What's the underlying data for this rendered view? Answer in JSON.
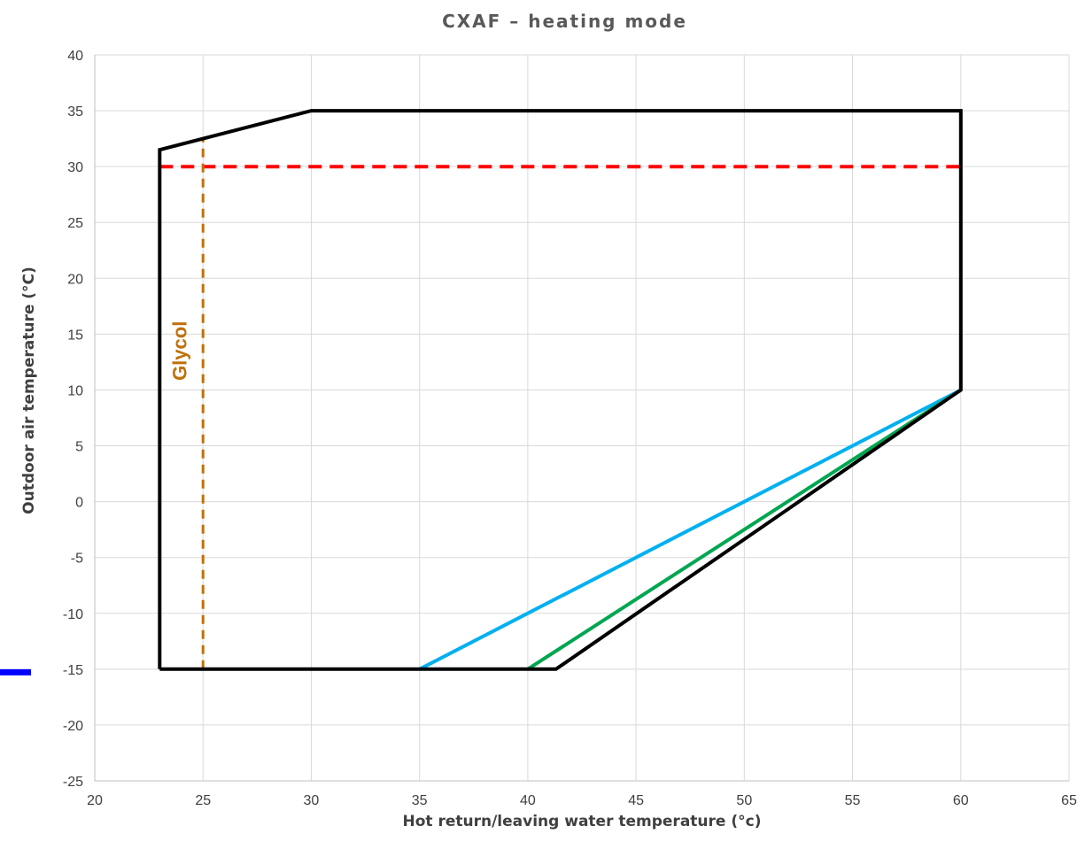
{
  "chart_data": {
    "type": "line",
    "title": "CXAF – heating mode",
    "xlabel": "Hot return/leaving water temperature (°c)",
    "ylabel": "Outdoor air temperature (°C)",
    "xlim": [
      20,
      65
    ],
    "ylim": [
      -25,
      40
    ],
    "xticks": [
      20,
      25,
      30,
      35,
      40,
      45,
      50,
      55,
      60,
      65
    ],
    "yticks": [
      40,
      35,
      30,
      25,
      20,
      15,
      10,
      5,
      0,
      -5,
      -10,
      -15,
      -20,
      -25
    ],
    "grid": true,
    "series": [
      {
        "color": "#000000",
        "dash": "solid",
        "x": [
          23,
          23,
          30,
          60,
          60,
          41.3,
          23
        ],
        "y": [
          -15,
          31.5,
          35,
          35,
          10,
          -15,
          -15
        ]
      },
      {
        "color": "#ff0000",
        "dash": "dashed",
        "x": [
          23,
          60
        ],
        "y": [
          30,
          30
        ]
      },
      {
        "color": "#c0700a",
        "dash": "dashed",
        "x": [
          25,
          25
        ],
        "y": [
          -15,
          32.6
        ]
      },
      {
        "color": "#00b0f0",
        "dash": "solid",
        "x": [
          35,
          60
        ],
        "y": [
          -15,
          10
        ]
      },
      {
        "color": "#00a651",
        "dash": "solid",
        "x": [
          40,
          60
        ],
        "y": [
          -15,
          10
        ]
      }
    ],
    "annotations": [
      {
        "text": "Glycol",
        "x": 24,
        "y": 13.5,
        "color": "#c0700a"
      }
    ],
    "marker": {
      "color": "#0000ff",
      "y": -15
    }
  }
}
